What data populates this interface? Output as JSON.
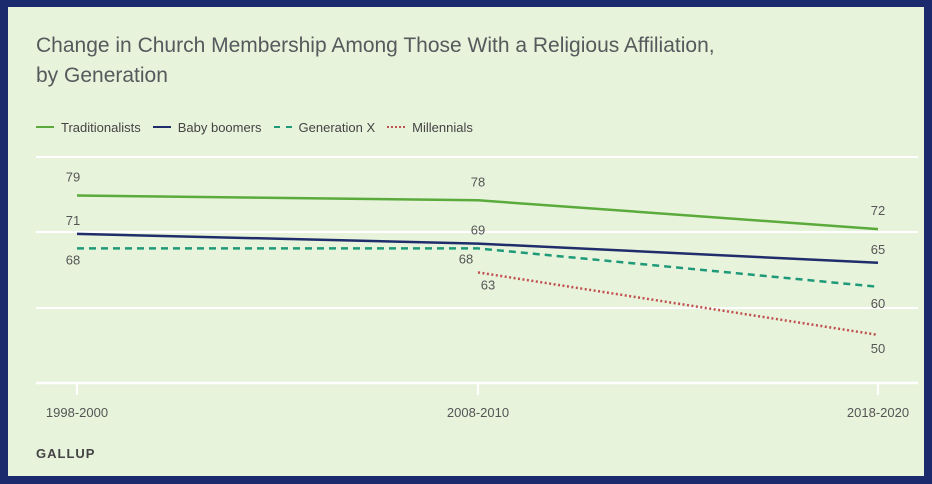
{
  "title": "Change in Church Membership Among Those With a Religious Affiliation, by Generation",
  "source": "GALLUP",
  "colors": {
    "traditionalists": "#5aaa3c",
    "baby_boomers": "#1f2d6b",
    "generation_x": "#1e9a78",
    "millennials": "#c0504d",
    "gridline": "#ffffff",
    "label": "#555555"
  },
  "legend": [
    {
      "name": "Traditionalists",
      "style": "solid",
      "color": "#5aaa3c"
    },
    {
      "name": "Baby boomers",
      "style": "solid",
      "color": "#1f2d6b"
    },
    {
      "name": "Generation X",
      "style": "dashed",
      "color": "#1e9a78"
    },
    {
      "name": "Millennials",
      "style": "dotted",
      "color": "#c0504d"
    }
  ],
  "chart_data": {
    "type": "line",
    "title": "Change in Church Membership Among Those With a Religious Affiliation, by Generation",
    "categories": [
      "1998-2000",
      "2008-2010",
      "2018-2020"
    ],
    "xlabel": "",
    "ylabel": "",
    "ylim": [
      40,
      87
    ],
    "grid": true,
    "legend_position": "top-left",
    "series": [
      {
        "name": "Traditionalists",
        "values": [
          79,
          78,
          72
        ],
        "color": "#5aaa3c",
        "style": "solid"
      },
      {
        "name": "Baby boomers",
        "values": [
          71,
          69,
          65
        ],
        "color": "#1f2d6b",
        "style": "solid"
      },
      {
        "name": "Generation X",
        "values": [
          68,
          68,
          60
        ],
        "color": "#1e9a78",
        "style": "dashed"
      },
      {
        "name": "Millennials",
        "values": [
          null,
          63,
          50
        ],
        "color": "#c0504d",
        "style": "dotted"
      }
    ]
  }
}
